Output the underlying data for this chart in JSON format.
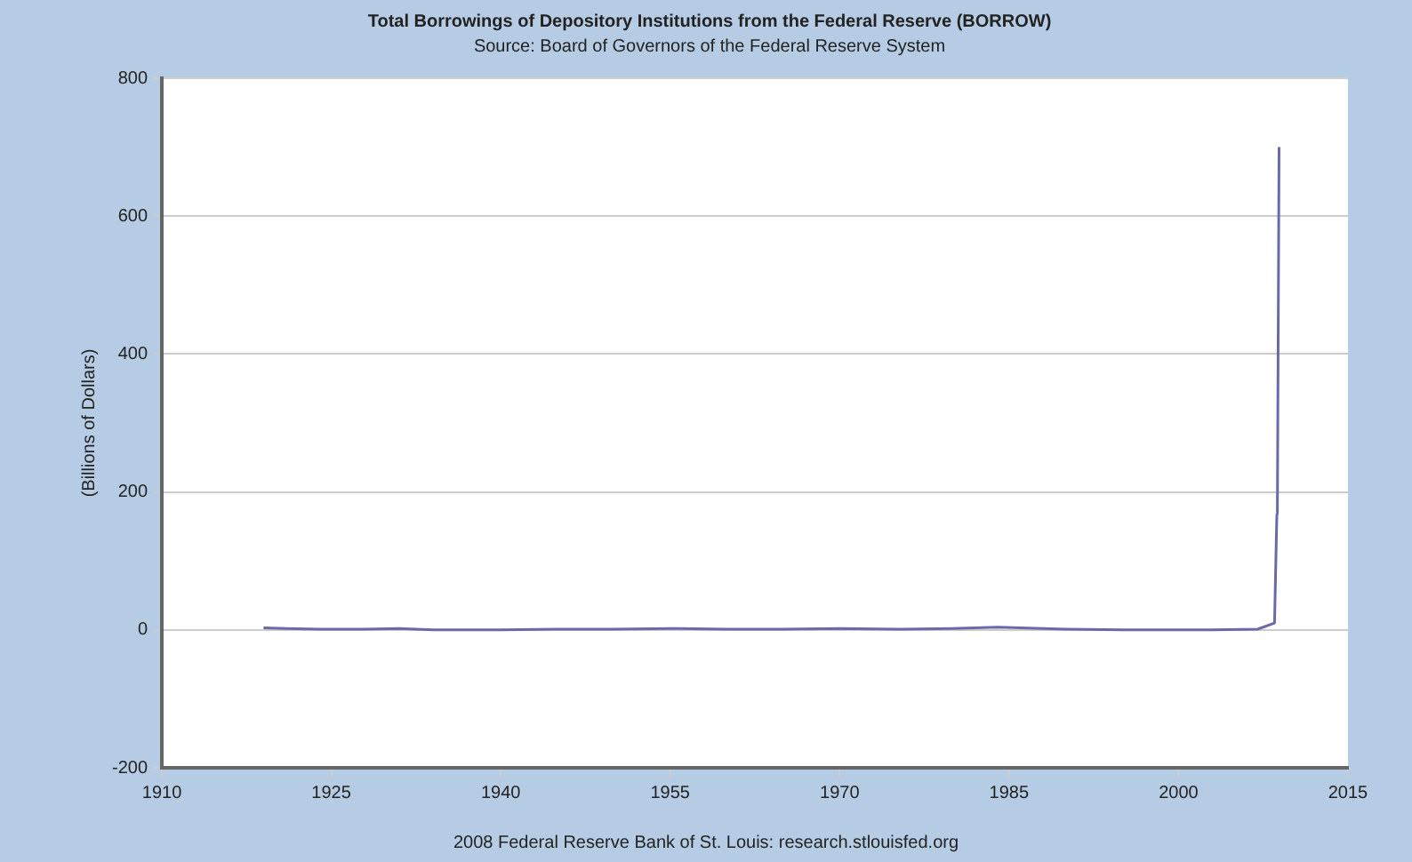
{
  "chart_data": {
    "type": "line",
    "title": "Total Borrowings of Depository Institutions from the Federal Reserve (BORROW)",
    "subtitle": "Source: Board of Governors of the Federal Reserve System",
    "ylabel": "(Billions of Dollars)",
    "annotations": [
      "2008 Federal Reserve Bank of St. Louis: research.stlouisfed.org"
    ],
    "xlim": [
      1910,
      2015
    ],
    "xticks": [
      1910,
      1925,
      1940,
      1955,
      1970,
      1985,
      2000,
      2015
    ],
    "ylim": [
      -200,
      800
    ],
    "yticks": [
      -200,
      0,
      200,
      400,
      600,
      800
    ],
    "grid": "y",
    "marker": "none",
    "line_style": "solid",
    "series": [
      {
        "color": "#6a6aa8",
        "x": [
          1919,
          1921,
          1924,
          1928,
          1931,
          1934,
          1937,
          1940,
          1945,
          1950,
          1955,
          1960,
          1965,
          1970,
          1975,
          1980,
          1984,
          1986,
          1990,
          1995,
          2000,
          2003,
          2007,
          2008.5,
          2008.7,
          2008.75,
          2008.9
        ],
        "values": [
          3,
          2,
          1,
          1,
          2,
          0,
          0,
          0,
          1,
          1,
          2,
          1,
          1,
          2,
          1,
          2,
          4,
          3,
          1,
          0,
          0,
          0,
          1,
          10,
          165,
          170,
          700
        ]
      }
    ]
  }
}
